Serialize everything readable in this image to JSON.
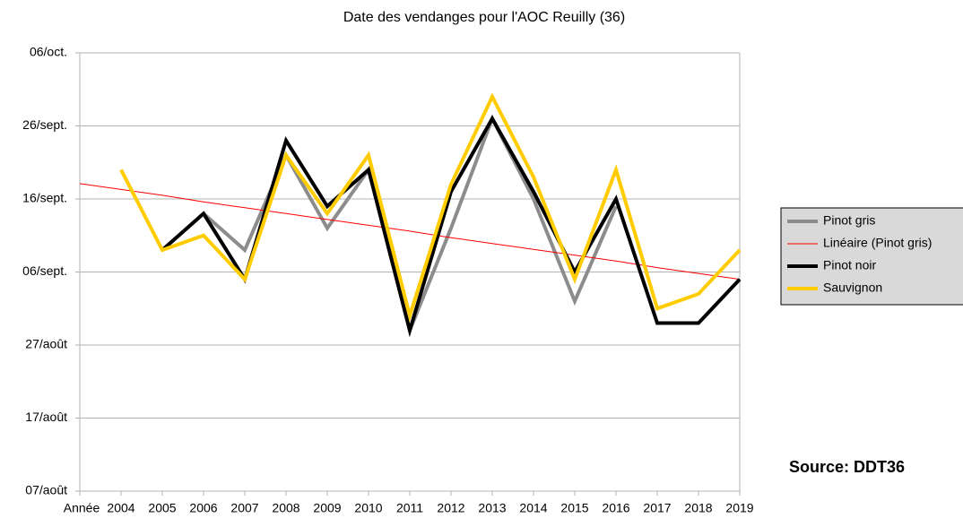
{
  "chart_data": {
    "type": "line",
    "title": "Date des vendanges pour l'AOC Reuilly (36)",
    "categories": [
      "Année",
      "2004",
      "2005",
      "2006",
      "2007",
      "2008",
      "2009",
      "2010",
      "2011",
      "2012",
      "2013",
      "2014",
      "2015",
      "2016",
      "2017",
      "2018",
      "2019"
    ],
    "series": [
      {
        "name": "Pinot gris",
        "color": "#8c8c8c",
        "width": 4,
        "values": [
          null,
          null,
          252,
          257,
          252,
          265,
          255,
          263,
          241,
          255,
          270,
          259,
          245,
          258,
          null,
          null,
          null
        ]
      },
      {
        "name": "Linéaire (Pinot gris)",
        "color": "#ff0000",
        "width": 1,
        "values": [
          261.1,
          260.3,
          259.5,
          258.6,
          257.8,
          257.0,
          256.2,
          255.4,
          254.6,
          253.7,
          252.9,
          252.1,
          251.3,
          250.5,
          249.6,
          248.8,
          248.0
        ]
      },
      {
        "name": "Pinot noir",
        "color": "#000000",
        "width": 4,
        "values": [
          null,
          null,
          252,
          257,
          248,
          267,
          258,
          263,
          241,
          260,
          270,
          260,
          249,
          259,
          242,
          242,
          248
        ]
      },
      {
        "name": "Sauvignon",
        "color": "#ffcc00",
        "width": 4,
        "values": [
          null,
          263,
          252,
          254,
          248,
          265,
          257,
          265,
          243,
          261,
          273,
          262,
          248,
          263,
          244,
          246,
          252
        ]
      }
    ],
    "ylim": [
      219,
      279
    ],
    "yticks": [
      {
        "value": 219,
        "label": "07/août"
      },
      {
        "value": 229,
        "label": "17/août"
      },
      {
        "value": 239,
        "label": "27/août"
      },
      {
        "value": 249,
        "label": "06/sept."
      },
      {
        "value": 259,
        "label": "16/sept."
      },
      {
        "value": 269,
        "label": "26/sept."
      },
      {
        "value": 279,
        "label": "06/oct."
      }
    ],
    "grid": true,
    "legend": "right",
    "source": "Source: DDT36"
  }
}
